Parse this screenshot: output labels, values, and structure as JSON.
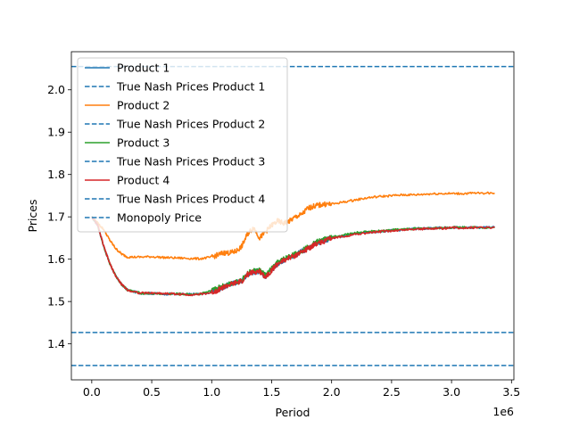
{
  "chart_data": {
    "type": "line",
    "xlabel": "Period",
    "ylabel": "Prices",
    "x_offset_label": "1e6",
    "xlim": [
      -0.17,
      3.52
    ],
    "ylim": [
      1.315,
      2.09
    ],
    "x_ticks": [
      {
        "value": 0.0,
        "label": "0.0"
      },
      {
        "value": 0.5,
        "label": "0.5"
      },
      {
        "value": 1.0,
        "label": "1.0"
      },
      {
        "value": 1.5,
        "label": "1.5"
      },
      {
        "value": 2.0,
        "label": "2.0"
      },
      {
        "value": 2.5,
        "label": "2.5"
      },
      {
        "value": 3.0,
        "label": "3.0"
      },
      {
        "value": 3.5,
        "label": "3.5"
      }
    ],
    "y_ticks": [
      {
        "value": 1.4,
        "label": "1.4"
      },
      {
        "value": 1.5,
        "label": "1.5"
      },
      {
        "value": 1.6,
        "label": "1.6"
      },
      {
        "value": 1.7,
        "label": "1.7"
      },
      {
        "value": 1.8,
        "label": "1.8"
      },
      {
        "value": 1.9,
        "label": "1.9"
      },
      {
        "value": 2.0,
        "label": "2.0"
      }
    ],
    "grid": false,
    "legend_position": "upper-left",
    "series": [
      {
        "name": "Product 1",
        "style": "solid",
        "color": "#1f77b4",
        "x": [
          0.0,
          0.05,
          0.1,
          0.15,
          0.2,
          0.25,
          0.3,
          0.4,
          0.5,
          0.6,
          0.7,
          0.8,
          0.9,
          1.0,
          1.05,
          1.1,
          1.15,
          1.2,
          1.25,
          1.3,
          1.35,
          1.4,
          1.45,
          1.5,
          1.55,
          1.6,
          1.65,
          1.7,
          1.75,
          1.8,
          1.85,
          1.9,
          1.95,
          2.0,
          2.1,
          2.2,
          2.3,
          2.4,
          2.5,
          2.6,
          2.7,
          2.8,
          2.9,
          3.0,
          3.1,
          3.2,
          3.36
        ],
        "y": [
          1.7,
          1.68,
          1.63,
          1.59,
          1.56,
          1.54,
          1.527,
          1.52,
          1.519,
          1.518,
          1.518,
          1.517,
          1.518,
          1.522,
          1.528,
          1.535,
          1.54,
          1.545,
          1.548,
          1.565,
          1.57,
          1.572,
          1.56,
          1.575,
          1.59,
          1.598,
          1.605,
          1.61,
          1.618,
          1.625,
          1.635,
          1.64,
          1.645,
          1.65,
          1.655,
          1.66,
          1.663,
          1.666,
          1.668,
          1.67,
          1.672,
          1.673,
          1.674,
          1.675,
          1.675,
          1.675,
          1.675
        ]
      },
      {
        "name": "True Nash Prices Product 1",
        "style": "dashed",
        "color": "#1f77b4",
        "hline": 1.349
      },
      {
        "name": "Product 2",
        "style": "solid",
        "color": "#ff7f0e",
        "x": [
          0.0,
          0.05,
          0.1,
          0.15,
          0.2,
          0.25,
          0.3,
          0.4,
          0.5,
          0.6,
          0.7,
          0.8,
          0.9,
          1.0,
          1.05,
          1.1,
          1.15,
          1.2,
          1.25,
          1.3,
          1.35,
          1.4,
          1.45,
          1.5,
          1.55,
          1.6,
          1.65,
          1.7,
          1.75,
          1.8,
          1.85,
          1.9,
          1.95,
          2.0,
          2.1,
          2.2,
          2.3,
          2.4,
          2.5,
          2.6,
          2.7,
          2.8,
          2.9,
          3.0,
          3.1,
          3.2,
          3.36
        ],
        "y": [
          1.7,
          1.685,
          1.67,
          1.645,
          1.625,
          1.612,
          1.605,
          1.605,
          1.606,
          1.604,
          1.603,
          1.602,
          1.601,
          1.605,
          1.61,
          1.615,
          1.615,
          1.618,
          1.63,
          1.66,
          1.675,
          1.65,
          1.665,
          1.68,
          1.69,
          1.685,
          1.69,
          1.7,
          1.705,
          1.72,
          1.725,
          1.728,
          1.73,
          1.73,
          1.735,
          1.74,
          1.745,
          1.748,
          1.75,
          1.752,
          1.752,
          1.754,
          1.755,
          1.755,
          1.755,
          1.756,
          1.756
        ]
      },
      {
        "name": "True Nash Prices Product 2",
        "style": "dashed",
        "color": "#1f77b4",
        "hline": 1.349
      },
      {
        "name": "Product 3",
        "style": "solid",
        "color": "#2ca02c",
        "x": [
          0.0,
          0.05,
          0.1,
          0.15,
          0.2,
          0.25,
          0.3,
          0.4,
          0.5,
          0.6,
          0.7,
          0.8,
          0.9,
          1.0,
          1.05,
          1.1,
          1.15,
          1.2,
          1.25,
          1.3,
          1.35,
          1.4,
          1.45,
          1.5,
          1.55,
          1.6,
          1.65,
          1.7,
          1.75,
          1.8,
          1.85,
          1.9,
          1.95,
          2.0,
          2.1,
          2.2,
          2.3,
          2.4,
          2.5,
          2.6,
          2.7,
          2.8,
          2.9,
          3.0,
          3.1,
          3.2,
          3.36
        ],
        "y": [
          1.7,
          1.68,
          1.63,
          1.59,
          1.56,
          1.54,
          1.527,
          1.52,
          1.519,
          1.518,
          1.518,
          1.517,
          1.518,
          1.525,
          1.532,
          1.538,
          1.542,
          1.547,
          1.55,
          1.567,
          1.572,
          1.574,
          1.562,
          1.577,
          1.592,
          1.6,
          1.607,
          1.612,
          1.62,
          1.628,
          1.637,
          1.643,
          1.648,
          1.652,
          1.657,
          1.662,
          1.665,
          1.667,
          1.669,
          1.671,
          1.672,
          1.673,
          1.674,
          1.675,
          1.675,
          1.675,
          1.675
        ]
      },
      {
        "name": "True Nash Prices Product 3",
        "style": "dashed",
        "color": "#1f77b4",
        "hline": 1.349
      },
      {
        "name": "Product 4",
        "style": "solid",
        "color": "#d62728",
        "x": [
          0.0,
          0.05,
          0.1,
          0.15,
          0.2,
          0.25,
          0.3,
          0.4,
          0.5,
          0.6,
          0.7,
          0.8,
          0.9,
          1.0,
          1.05,
          1.1,
          1.15,
          1.2,
          1.25,
          1.3,
          1.35,
          1.4,
          1.45,
          1.5,
          1.55,
          1.6,
          1.65,
          1.7,
          1.75,
          1.8,
          1.85,
          1.9,
          1.95,
          2.0,
          2.1,
          2.2,
          2.3,
          2.4,
          2.5,
          2.6,
          2.7,
          2.8,
          2.9,
          3.0,
          3.1,
          3.2,
          3.36
        ],
        "y": [
          1.7,
          1.68,
          1.63,
          1.59,
          1.56,
          1.54,
          1.527,
          1.52,
          1.52,
          1.519,
          1.518,
          1.516,
          1.517,
          1.521,
          1.527,
          1.534,
          1.539,
          1.544,
          1.547,
          1.564,
          1.569,
          1.571,
          1.558,
          1.574,
          1.589,
          1.597,
          1.604,
          1.609,
          1.617,
          1.624,
          1.634,
          1.639,
          1.644,
          1.649,
          1.654,
          1.659,
          1.662,
          1.665,
          1.667,
          1.669,
          1.671,
          1.672,
          1.673,
          1.674,
          1.674,
          1.675,
          1.675
        ]
      },
      {
        "name": "True Nash Prices Product 4",
        "style": "dashed",
        "color": "#1f77b4",
        "hline": 1.349
      },
      {
        "name": "Monopoly Price",
        "style": "dashed",
        "color": "#1f77b4",
        "hline": 2.055
      }
    ],
    "extra_hlines": [
      {
        "value": 1.427,
        "color": "#1f77b4",
        "style": "dashed"
      }
    ]
  }
}
